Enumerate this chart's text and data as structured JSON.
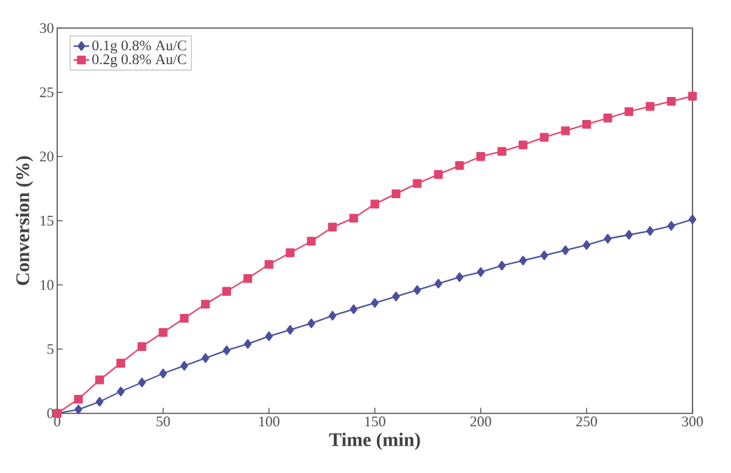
{
  "chart_data": {
    "type": "line",
    "xlabel": "Time (min)",
    "ylabel": "Conversion (%)",
    "xlim": [
      0,
      300
    ],
    "ylim": [
      0,
      30
    ],
    "xticks": [
      0,
      50,
      100,
      150,
      200,
      250,
      300
    ],
    "yticks": [
      0,
      5,
      10,
      15,
      20,
      25,
      30
    ],
    "grid": false,
    "legend": "top left",
    "x": [
      0,
      10,
      20,
      30,
      40,
      50,
      60,
      70,
      80,
      90,
      100,
      110,
      120,
      130,
      140,
      150,
      160,
      170,
      180,
      190,
      200,
      210,
      220,
      230,
      240,
      250,
      260,
      270,
      280,
      290,
      300
    ],
    "series": [
      {
        "name": "0.1g 0.8% Au/C",
        "color": "#4a4f9e",
        "marker": "diamond",
        "values": [
          0,
          0.3,
          0.9,
          1.7,
          2.4,
          3.1,
          3.7,
          4.3,
          4.9,
          5.4,
          6.0,
          6.5,
          7.0,
          7.6,
          8.1,
          8.6,
          9.1,
          9.6,
          10.1,
          10.6,
          11.0,
          11.5,
          11.9,
          12.3,
          12.7,
          13.1,
          13.6,
          13.9,
          14.2,
          14.6,
          15.1
        ]
      },
      {
        "name": "0.2g 0.8% Au/C",
        "color": "#e0446e",
        "marker": "square",
        "values": [
          0,
          1.1,
          2.6,
          3.9,
          5.2,
          6.3,
          7.4,
          8.5,
          9.5,
          10.5,
          11.6,
          12.5,
          13.4,
          14.5,
          15.2,
          16.3,
          17.1,
          17.9,
          18.6,
          19.3,
          20.0,
          20.4,
          20.9,
          21.5,
          22.0,
          22.5,
          23.0,
          23.5,
          23.9,
          24.3,
          24.7
        ]
      }
    ]
  }
}
